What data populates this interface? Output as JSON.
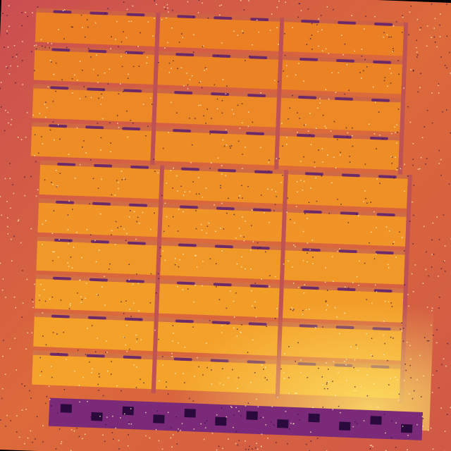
{
  "image": {
    "kind": "thermal-aerial-solar-array",
    "colormap": "inferno",
    "colors": {
      "background": "#000000",
      "panel_hot": "#f4a22a",
      "panel_hottest": "#fde36a",
      "panel_warm": "#ea7f24",
      "frame_cool": "#b44a5e",
      "gap_cold": "#5a1e6e",
      "ground": "#d9653a",
      "noise_light": "#fff5c0",
      "noise_dark": "#2a0a3c"
    },
    "array": {
      "module_columns": 3,
      "module_rows": 10
    }
  }
}
